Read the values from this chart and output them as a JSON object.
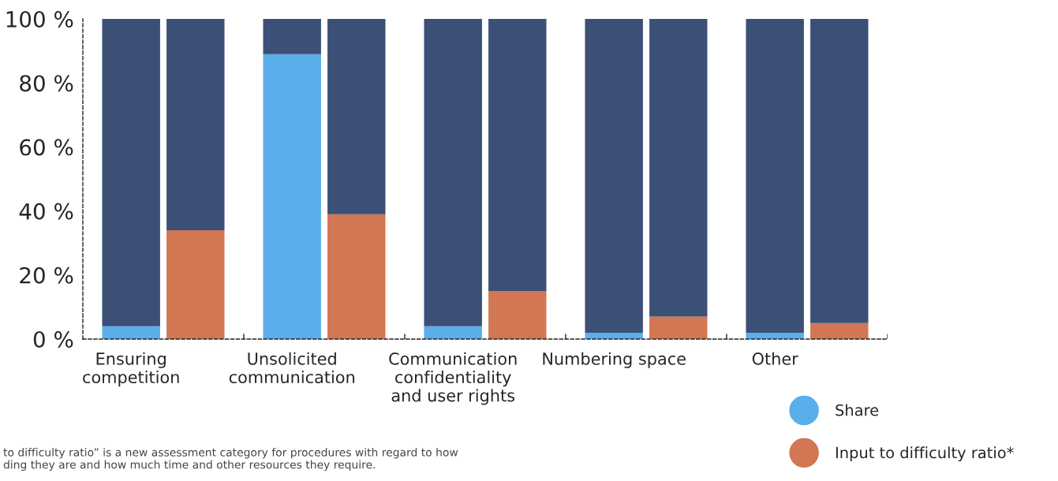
{
  "chart_data": {
    "type": "bar",
    "stacked": true,
    "categories": [
      "Ensuring\ncompetition",
      null,
      "Unsolicited\ncommunication",
      null,
      "Communication\nconfidentiality\nand user rights",
      null,
      "Numbering space",
      null,
      "Other",
      null
    ],
    "series": [
      {
        "name": "Share",
        "color": "#5aaeea",
        "values": [
          4,
          null,
          89,
          null,
          4,
          null,
          2,
          null,
          2,
          null
        ]
      },
      {
        "name": "Input to difficulty ratio*",
        "color": "#d17753",
        "values": [
          null,
          34,
          null,
          39,
          null,
          15,
          null,
          7,
          null,
          5
        ]
      },
      {
        "color": "#3c5077",
        "values": [
          96,
          66,
          11,
          61,
          96,
          85,
          98,
          93,
          98,
          95
        ]
      }
    ],
    "ylim": [
      0,
      100
    ],
    "yticks": [
      {
        "value": 0,
        "label": "0 %"
      },
      {
        "value": 20,
        "label": "20 %"
      },
      {
        "value": 40,
        "label": "40 %"
      },
      {
        "value": 60,
        "label": "60 %"
      },
      {
        "value": 80,
        "label": "80 %"
      },
      {
        "value": 100,
        "label": "100 %"
      }
    ],
    "legend": "bottom right",
    "grid": false,
    "annotations": [
      "to difficulty ratio” is a new assessment category for procedures with regard to how\nding they are and how much time and other resources they require."
    ]
  }
}
